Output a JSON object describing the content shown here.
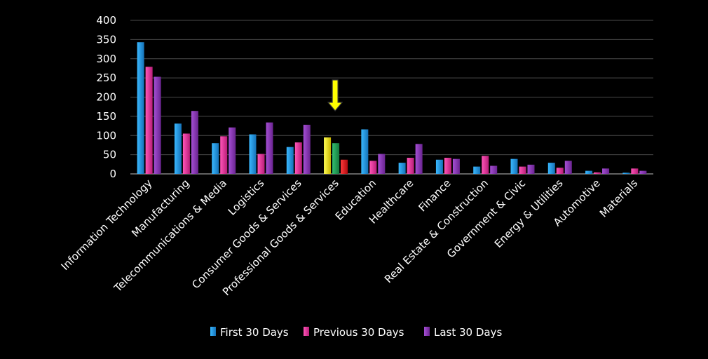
{
  "chart_data": {
    "type": "bar",
    "categories": [
      "Information Technology",
      "Manufacturing",
      "Telecommunications & Media",
      "Logistics",
      "Consumer Goods &  Services",
      "Professional Goods & Services",
      "Education",
      "Healthcare",
      "Finance",
      "Real Estate & Construction",
      "Government & Civic",
      "Energy & Utilities",
      "Automotive",
      "Materials"
    ],
    "series": [
      {
        "name": "First 30 Days",
        "color": "#1e9be6",
        "values": [
          343,
          131,
          80,
          103,
          70,
          95,
          116,
          29,
          37,
          19,
          39,
          29,
          8,
          3
        ]
      },
      {
        "name": "Previous 30 Days",
        "color": "#e8359c",
        "values": [
          279,
          105,
          98,
          52,
          82,
          80,
          34,
          42,
          42,
          47,
          19,
          16,
          4,
          14
        ]
      },
      {
        "name": "Last 30 Days",
        "color": "#8a35b5",
        "values": [
          253,
          164,
          121,
          134,
          128,
          37,
          52,
          78,
          39,
          21,
          24,
          34,
          14,
          8
        ]
      }
    ],
    "highlight": {
      "category_index": 5,
      "bar_colors": [
        "#e6e61a",
        "#23a05a",
        "#e0161e"
      ],
      "arrow_color": "#ffff00"
    },
    "yticks": [
      0,
      50,
      100,
      150,
      200,
      250,
      300,
      350,
      400
    ],
    "ylim": [
      0,
      400
    ],
    "grid": true,
    "legend_position": "bottom"
  }
}
